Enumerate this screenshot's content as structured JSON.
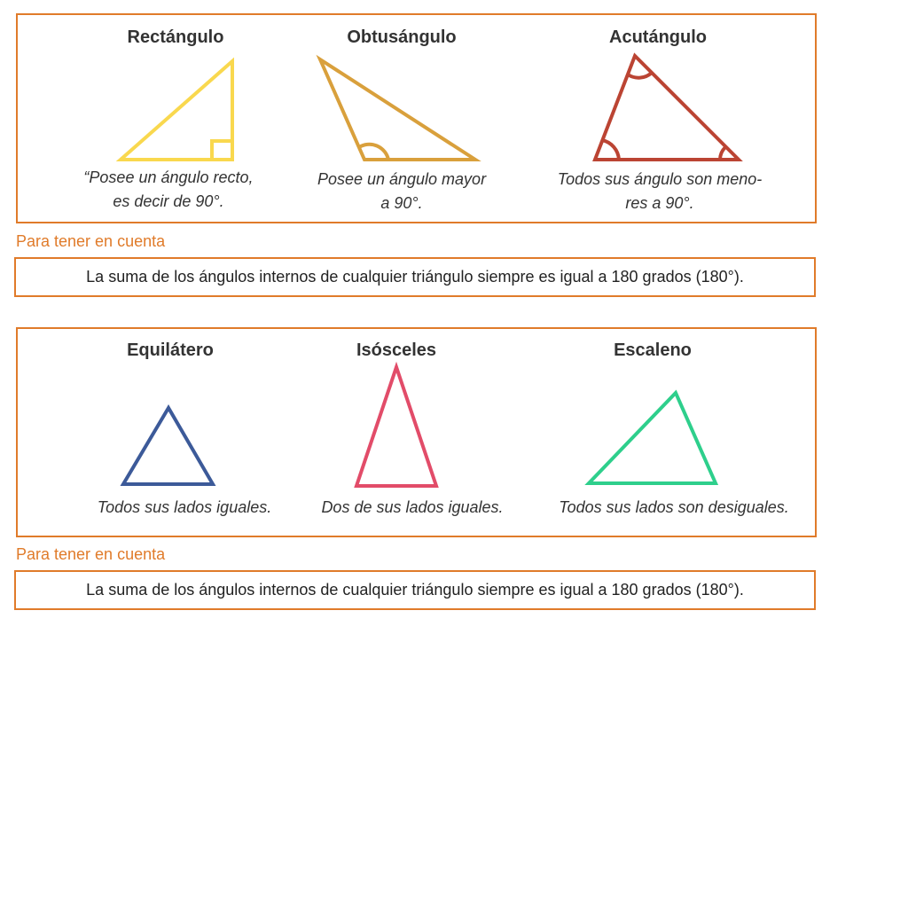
{
  "angle_section": {
    "items": [
      {
        "title": "Rectángulo",
        "caption_lines": [
          "“Posee un ángulo recto,",
          "es decir de 90°."
        ],
        "color": "#f9d84e"
      },
      {
        "title": "Obtusángulo",
        "caption_lines": [
          "Posee un ángulo mayor",
          "a 90°."
        ],
        "color": "#d9a03c"
      },
      {
        "title": "Acutángulo",
        "caption_lines": [
          "Todos sus ángulo son meno-",
          "res a 90°."
        ],
        "color": "#bb4433"
      }
    ],
    "note": {
      "label": "Para tener en cuenta",
      "text": "La suma de los ángulos internos de cualquier triángulo siempre es igual a 180 grados (180°)."
    }
  },
  "side_section": {
    "items": [
      {
        "title": "Equilátero",
        "caption": "Todos sus lados iguales.",
        "color": "#3c5a99"
      },
      {
        "title": "Isósceles",
        "caption": "Dos de sus lados iguales.",
        "color": "#e24c69"
      },
      {
        "title": "Escaleno",
        "caption": "Todos sus lados son desiguales.",
        "color": "#2ecf8c"
      }
    ],
    "note": {
      "label": "Para tener en cuenta",
      "text": "La suma de los ángulos internos de cualquier triángulo siempre es igual a 180 grados (180°)."
    }
  }
}
